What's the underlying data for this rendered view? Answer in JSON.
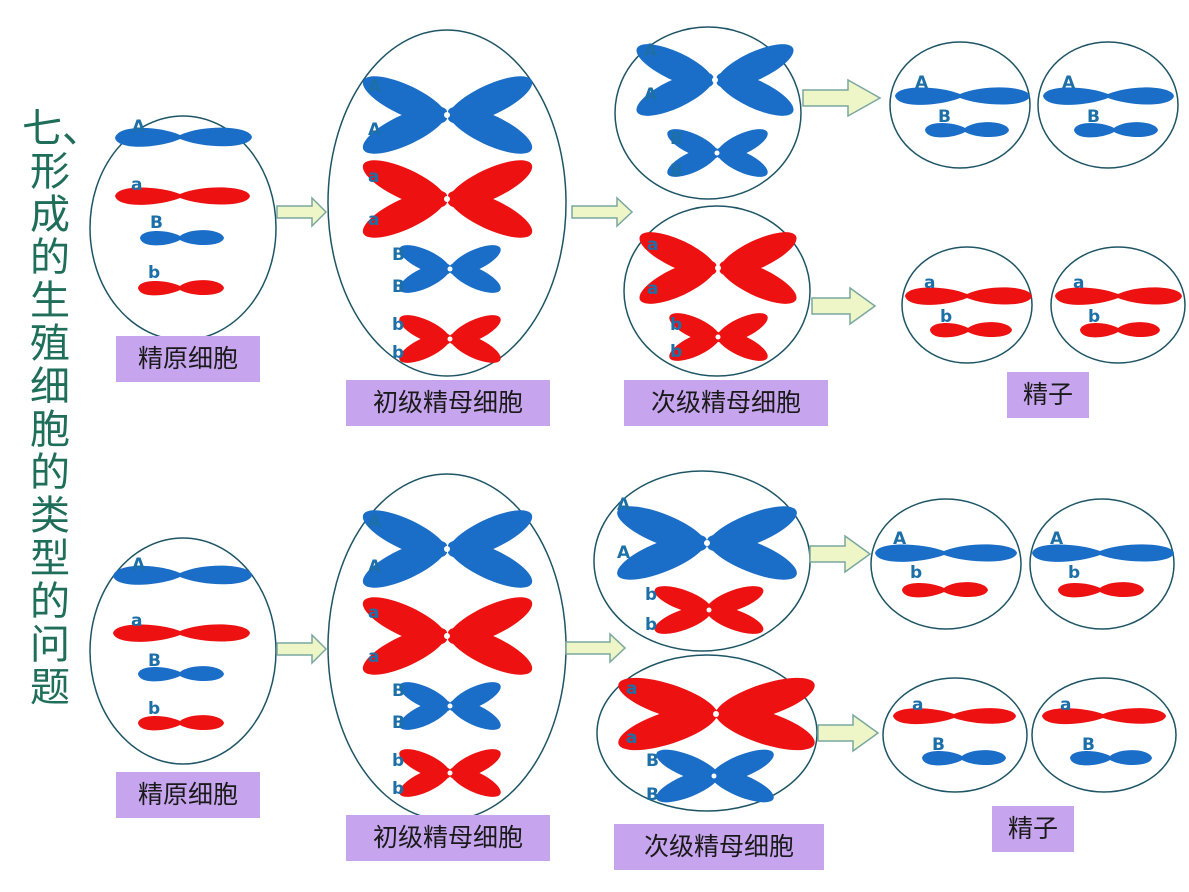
{
  "title": "七、形成的生殖细胞的类型的问题",
  "labels": {
    "spermatogonium": "精原细胞",
    "primary_spermatocyte": "初级精母细胞",
    "secondary_spermatocyte": "次级精母细胞",
    "sperm": "精子"
  },
  "genes": {
    "A": "A",
    "a": "a",
    "B": "B",
    "b": "b"
  },
  "colors": {
    "blue": "#1a6ec7",
    "red": "#ee1111",
    "label_bg": "#c6a5ee",
    "ellipse": "#1e5566",
    "arrow": "#eef6c8",
    "title": "#1f6e5a"
  }
}
